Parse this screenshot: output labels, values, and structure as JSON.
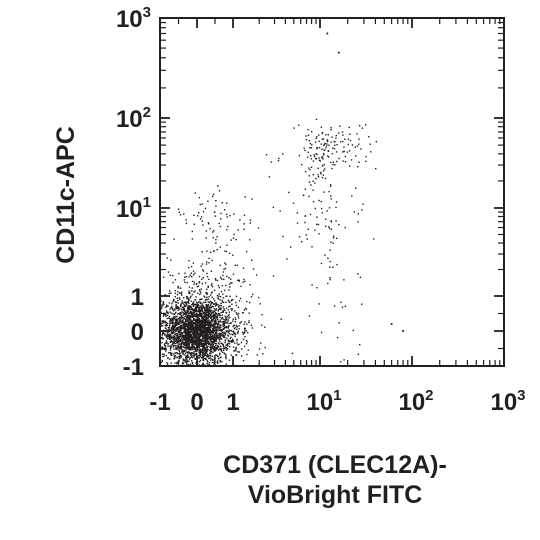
{
  "chart_data": {
    "type": "scatter",
    "title": "",
    "xlabel_lines": [
      "CD371 (CLEC12A)-",
      "VioBright FITC"
    ],
    "ylabel": "CD11c-APC",
    "x_scale": "biexponential",
    "y_scale": "biexponential",
    "xlim": [
      -1,
      1000
    ],
    "ylim": [
      -1,
      1000
    ],
    "grid": false,
    "legend": "none",
    "point_color": "#231f20",
    "x_ticks": [
      {
        "value": -1,
        "base": "-1",
        "exp": ""
      },
      {
        "value": 0,
        "base": "0",
        "exp": ""
      },
      {
        "value": 1,
        "base": "1",
        "exp": ""
      },
      {
        "value": 10,
        "base": "10",
        "exp": "1"
      },
      {
        "value": 100,
        "base": "10",
        "exp": "2"
      },
      {
        "value": 1000,
        "base": "10",
        "exp": "3"
      }
    ],
    "y_ticks": [
      {
        "value": -1,
        "base": "-1",
        "exp": ""
      },
      {
        "value": 0,
        "base": "0",
        "exp": ""
      },
      {
        "value": 1,
        "base": "1",
        "exp": ""
      },
      {
        "value": 10,
        "base": "10",
        "exp": "1"
      },
      {
        "value": 100,
        "base": "10",
        "exp": "2"
      },
      {
        "value": 1000,
        "base": "10",
        "exp": "3"
      }
    ],
    "populations": [
      {
        "name": "",
        "center": [
          0,
          0
        ],
        "spread": [
          0.45,
          0.45
        ],
        "count": 2600
      },
      {
        "name": "",
        "center": [
          0,
          0
        ],
        "spread": [
          0.9,
          0.9
        ],
        "count": 700
      },
      {
        "name": "",
        "center": [
          10,
          30
        ],
        "spread": [
          3,
          25
        ],
        "count": 150
      },
      {
        "name": "",
        "center": [
          20,
          50
        ],
        "spread": [
          8,
          20
        ],
        "count": 70
      },
      {
        "name": "",
        "center": [
          0.6,
          3
        ],
        "spread": [
          0.5,
          6
        ],
        "count": 140
      },
      {
        "name": "",
        "center": [
          8,
          3
        ],
        "spread": [
          10,
          4
        ],
        "count": 120
      }
    ],
    "outliers": [
      {
        "x": 12,
        "y": 700
      },
      {
        "x": 16,
        "y": 450
      },
      {
        "x": 80,
        "y": 0
      },
      {
        "x": 60,
        "y": 0.2
      }
    ]
  }
}
